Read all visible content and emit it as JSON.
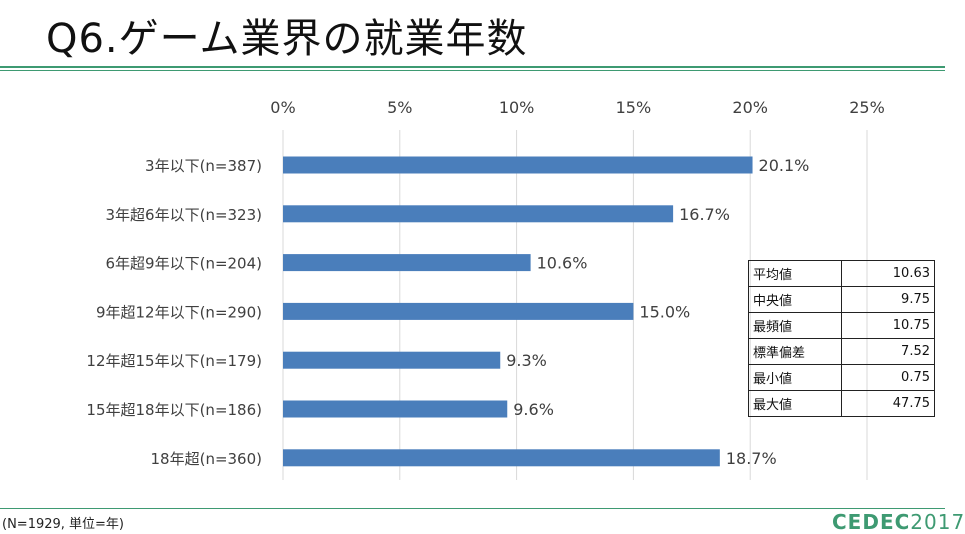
{
  "title": "Q6.ゲーム業界の就業年数",
  "chart_data": {
    "type": "bar",
    "orientation": "horizontal",
    "categories": [
      "3年以下(n=387)",
      "3年超6年以下(n=323)",
      "6年超9年以下(n=204)",
      "9年超12年以下(n=290)",
      "12年超15年以下(n=179)",
      "15年超18年以下(n=186)",
      "18年超(n=360)"
    ],
    "values": [
      20.1,
      16.7,
      10.6,
      15.0,
      9.3,
      9.6,
      18.7
    ],
    "value_labels": [
      "20.1%",
      "16.7%",
      "10.6%",
      "15.0%",
      "9.3%",
      "9.6%",
      "18.7%"
    ],
    "xlim": [
      0,
      25
    ],
    "x_ticks": [
      0,
      5,
      10,
      15,
      20,
      25
    ],
    "x_tick_labels": [
      "0%",
      "5%",
      "10%",
      "15%",
      "20%",
      "25%"
    ],
    "axis_position": "top",
    "grid": true,
    "bar_color": "#4a7ebb"
  },
  "stats_table": [
    {
      "label": "平均値",
      "value": "10.63"
    },
    {
      "label": "中央値",
      "value": "9.75"
    },
    {
      "label": "最頻値",
      "value": "10.75"
    },
    {
      "label": "標準偏差",
      "value": "7.52"
    },
    {
      "label": "最小値",
      "value": "0.75"
    },
    {
      "label": "最大値",
      "value": "47.75"
    }
  ],
  "footnote": "(N=1929, 単位=年)",
  "logo": {
    "brand": "CEDEC",
    "year": "2017"
  },
  "colors": {
    "accent": "#3e9a72",
    "bar": "#4a7ebb",
    "grid": "#d9d9d9"
  }
}
